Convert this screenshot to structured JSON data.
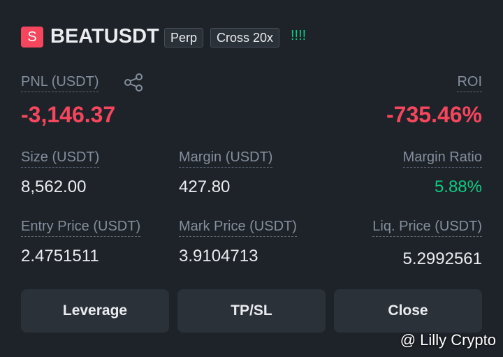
{
  "header": {
    "badge": "S",
    "symbol": "BEATUSDT",
    "tags": [
      "Perp",
      "Cross 20x"
    ],
    "signal": "!!!!"
  },
  "pnl": {
    "label": "PNL (USDT)",
    "value": "-3,146.37"
  },
  "roi": {
    "label": "ROI",
    "value": "-735.46%"
  },
  "fields": [
    {
      "label": "Size (USDT)",
      "value": "8,562.00"
    },
    {
      "label": "Margin (USDT)",
      "value": "427.80"
    },
    {
      "label": "Margin Ratio",
      "value": "5.88%"
    },
    {
      "label": "Entry Price (USDT)",
      "value": "2.4751511"
    },
    {
      "label": "Mark Price (USDT)",
      "value": "3.9104713"
    },
    {
      "label": "Liq. Price (USDT)",
      "value": "5.2992561"
    }
  ],
  "buttons": [
    "Leverage",
    "TP/SL",
    "Close"
  ],
  "watermark": "@ Lilly Crypto"
}
